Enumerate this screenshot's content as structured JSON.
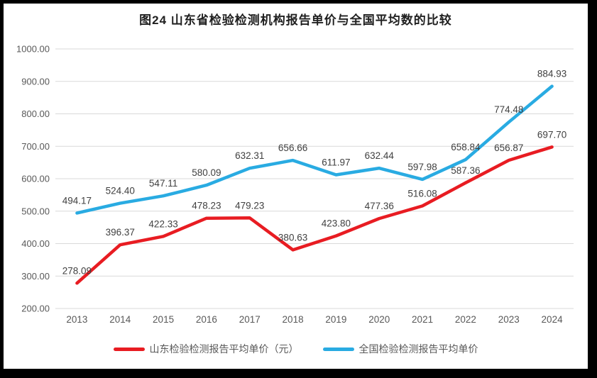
{
  "title": "图24  山东省检验检测机构报告单价与全国平均数的比较",
  "chart_data": {
    "type": "line",
    "categories": [
      "2013",
      "2014",
      "2015",
      "2016",
      "2017",
      "2018",
      "2019",
      "2020",
      "2021",
      "2022",
      "2023",
      "2024"
    ],
    "series": [
      {
        "name": "山东检验检测报告平均单价（元）",
        "color": "#e81c22",
        "values": [
          278.09,
          396.37,
          422.33,
          478.23,
          479.23,
          380.63,
          423.8,
          477.36,
          516.08,
          587.36,
          656.87,
          697.7
        ]
      },
      {
        "name": "全国检验检测报告平均单价",
        "color": "#29abe2",
        "values": [
          494.17,
          524.4,
          547.11,
          580.09,
          632.31,
          656.66,
          611.97,
          632.44,
          597.98,
          658.84,
          774.48,
          884.93
        ]
      }
    ],
    "title": "图24  山东省检验检测机构报告单价与全国平均数的比较",
    "xlabel": "",
    "ylabel": "",
    "ylim": [
      200,
      1000
    ],
    "ytick_step": 100,
    "ytick_labels": [
      "200.00",
      "300.00",
      "400.00",
      "500.00",
      "600.00",
      "700.00",
      "800.00",
      "900.00",
      "1000.00"
    ],
    "grid": true,
    "data_labels": true,
    "label_decimals": 2,
    "legend_position": "bottom"
  },
  "colors": {
    "grid": "#d9d9d9",
    "tick_text": "#595959",
    "label_text": "#404040",
    "frame": "#000000",
    "background": "#ffffff"
  }
}
